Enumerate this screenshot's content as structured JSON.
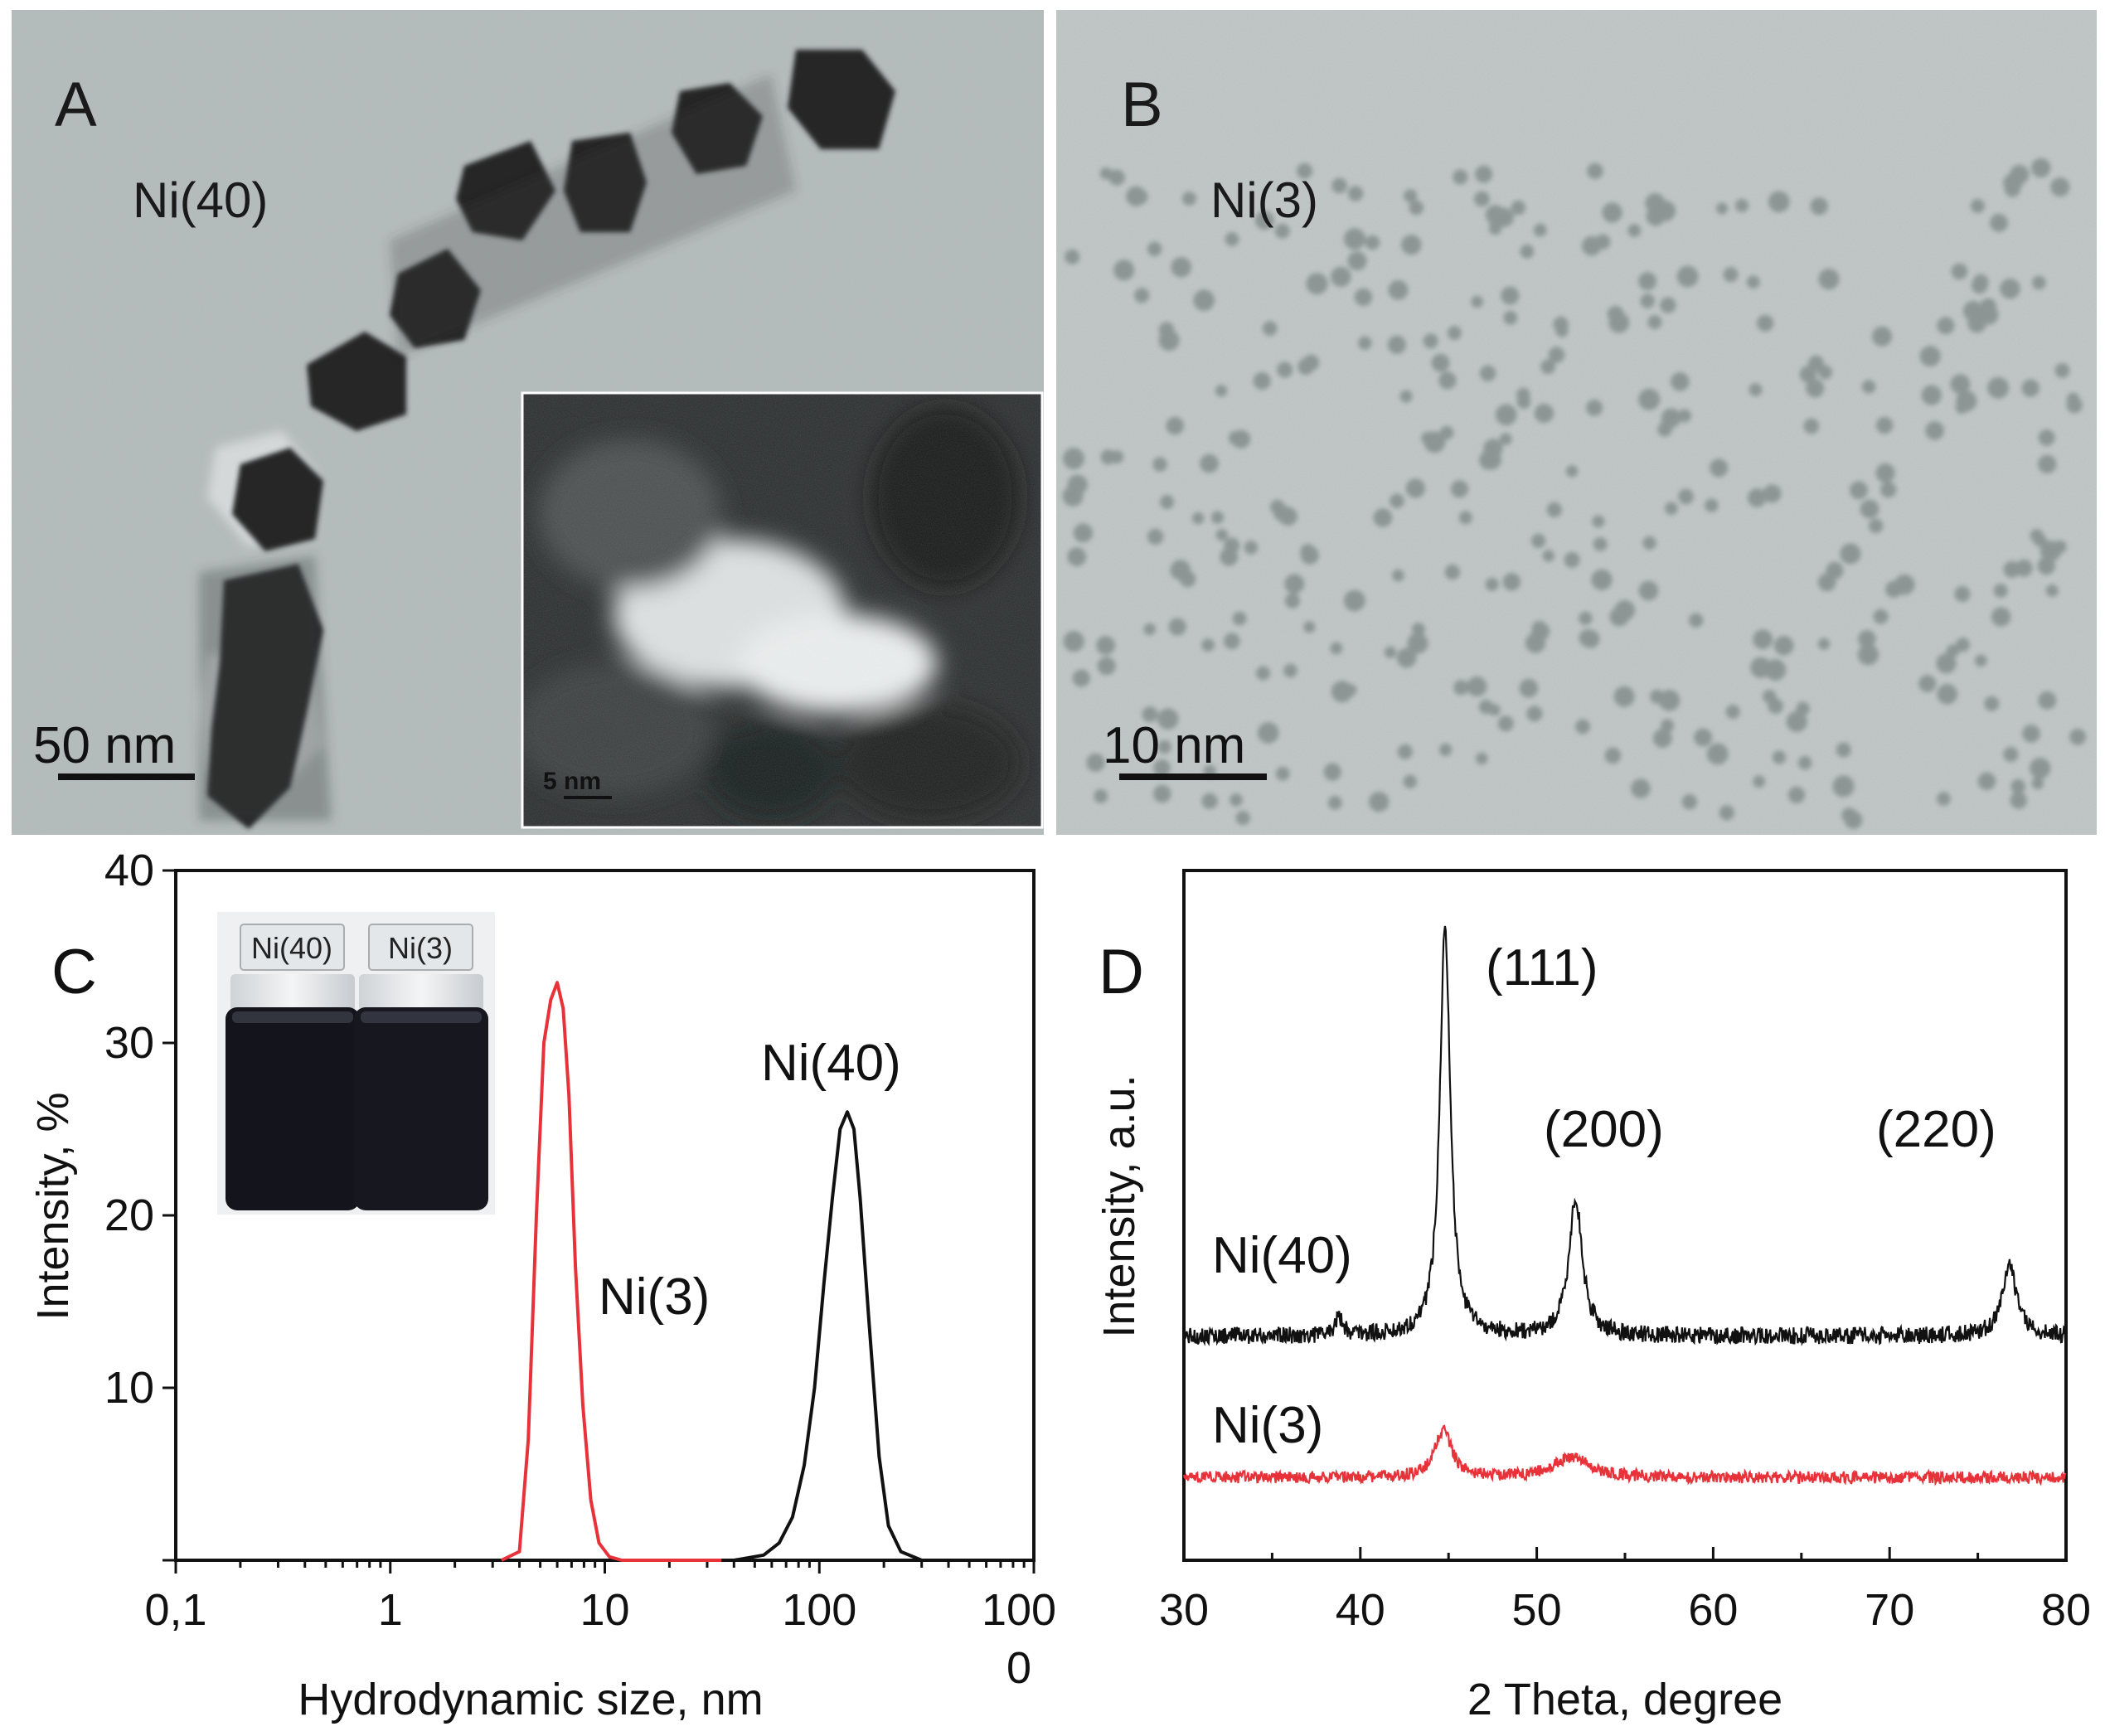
{
  "panels": {
    "A": {
      "letter": "A",
      "sample": "Ni(40)",
      "scalebar": "50 nm",
      "inset_scalebar": "5 nm"
    },
    "B": {
      "letter": "B",
      "sample": "Ni(3)",
      "scalebar": "10 nm"
    },
    "C": {
      "letter": "C",
      "vial_labels": [
        "Ni(40)",
        "Ni(3)"
      ]
    },
    "D": {
      "letter": "D",
      "peak_labels": [
        "(111)",
        "(200)",
        "(220)"
      ]
    }
  },
  "chart_data": [
    {
      "id": "C",
      "type": "line",
      "xscale": "log",
      "xlabel": "Hydrodynamic size, nm",
      "ylabel": "Intensity, %",
      "xlim": [
        0.1,
        1000
      ],
      "ylim": [
        0,
        40
      ],
      "xticklabels": [
        "0,1",
        "1",
        "10",
        "100",
        "1000"
      ],
      "yticks": [
        10,
        20,
        30,
        40
      ],
      "series": [
        {
          "name": "Ni(3)",
          "color": "#e8323a",
          "x": [
            3.3,
            4.0,
            4.4,
            4.8,
            5.2,
            5.6,
            6.0,
            6.4,
            6.8,
            7.3,
            7.9,
            8.6,
            9.4,
            10.5,
            12,
            20,
            35
          ],
          "y": [
            0,
            0.5,
            7,
            20,
            30,
            32.5,
            33.5,
            32,
            27,
            17,
            9,
            3.5,
            1,
            0.2,
            0,
            0,
            0
          ]
        },
        {
          "name": "Ni(40)",
          "color": "#111111",
          "x": [
            40,
            55,
            65,
            75,
            85,
            95,
            105,
            115,
            125,
            135,
            145,
            155,
            170,
            190,
            210,
            240,
            300,
            500,
            900
          ],
          "y": [
            0,
            0.3,
            1,
            2.5,
            5.5,
            10,
            16,
            21,
            25,
            26,
            25,
            21,
            14,
            6,
            2,
            0.5,
            0,
            0,
            0
          ]
        }
      ]
    },
    {
      "id": "D",
      "type": "line",
      "xlabel": "2 Theta, degree",
      "ylabel": "Intensity, a.u.",
      "xlim": [
        30,
        80
      ],
      "xticks": [
        30,
        40,
        50,
        60,
        70,
        80
      ],
      "series": [
        {
          "name": "Ni(40)",
          "color": "#111111",
          "baseline": 13,
          "peaks": [
            {
              "center": 44.8,
              "height": 24,
              "width": 0.35
            },
            {
              "center": 52.2,
              "height": 8,
              "width": 0.45
            },
            {
              "center": 76.8,
              "height": 4,
              "width": 0.5
            },
            {
              "center": 38.8,
              "height": 1,
              "width": 0.3
            }
          ]
        },
        {
          "name": "Ni(3)",
          "color": "#e8323a",
          "baseline": 4.8,
          "peaks": [
            {
              "center": 44.7,
              "height": 2.8,
              "width": 0.55
            },
            {
              "center": 52.0,
              "height": 1.2,
              "width": 1.2
            }
          ]
        }
      ]
    }
  ]
}
